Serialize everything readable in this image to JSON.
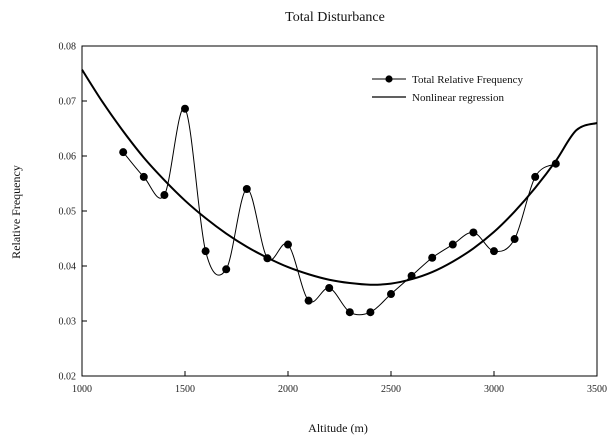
{
  "chart_data": {
    "type": "line",
    "title": "Total Disturbance",
    "xlabel": "Altitude (m)",
    "ylabel": "Relative Frequency",
    "xlim": [
      1000,
      3500
    ],
    "ylim": [
      0.02,
      0.08
    ],
    "x_ticks": [
      1000,
      1500,
      2000,
      2500,
      3000,
      3500
    ],
    "y_ticks": [
      0.02,
      0.03,
      0.04,
      0.05,
      0.06,
      0.07,
      0.08
    ],
    "x_tick_labels": [
      "1000",
      "1500",
      "2000",
      "2500",
      "3000",
      "3500"
    ],
    "y_tick_labels": [
      "0.02",
      "0.03",
      "0.04",
      "0.05",
      "0.06",
      "0.07",
      "0.08"
    ],
    "grid": false,
    "legend": {
      "placement": "top-right"
    },
    "series": [
      {
        "name": "Total Relative Frequency",
        "style": "line-with-markers",
        "x": [
          1200,
          1300,
          1400,
          1500,
          1600,
          1700,
          1800,
          1900,
          2000,
          2100,
          2200,
          2300,
          2400,
          2500,
          2600,
          2700,
          2800,
          2900,
          3000,
          3100,
          3200,
          3300
        ],
        "y": [
          0.0607,
          0.0562,
          0.0529,
          0.0686,
          0.0427,
          0.0394,
          0.054,
          0.0414,
          0.0439,
          0.0337,
          0.036,
          0.0316,
          0.0316,
          0.0349,
          0.0382,
          0.0415,
          0.0439,
          0.0461,
          0.0427,
          0.0449,
          0.0562,
          0.0586
        ]
      },
      {
        "name": "Nonlinear regression",
        "style": "line",
        "x": [
          1000,
          1100,
          1200,
          1300,
          1400,
          1500,
          1600,
          1700,
          1800,
          1900,
          2000,
          2100,
          2200,
          2300,
          2400,
          2500,
          2600,
          2700,
          2800,
          2900,
          3000,
          3100,
          3200,
          3300,
          3400,
          3500
        ],
        "y": [
          0.0757,
          0.0698,
          0.0645,
          0.0597,
          0.0556,
          0.0519,
          0.0487,
          0.0459,
          0.0435,
          0.0415,
          0.0398,
          0.0385,
          0.0375,
          0.0369,
          0.0366,
          0.0368,
          0.0376,
          0.0389,
          0.0408,
          0.0432,
          0.0462,
          0.0499,
          0.0542,
          0.0591,
          0.0647,
          0.066
        ]
      }
    ]
  }
}
